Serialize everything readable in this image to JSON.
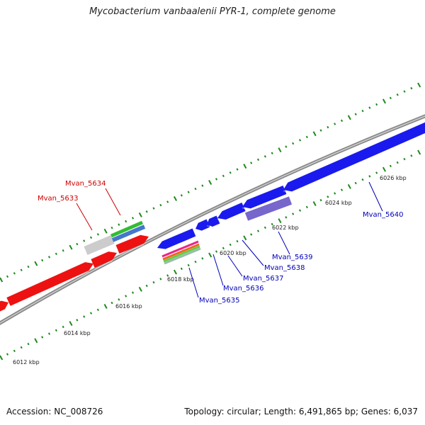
{
  "title": "Mycobacterium vanbaalenii PYR-1, complete genome",
  "footer": {
    "accession": "Accession: NC_008726",
    "summary": "Topology: circular; Length: 6,491,865 bp; Genes: 6,037"
  },
  "colors": {
    "backbone": "#8a8a8a",
    "tick": "#1f8a1f",
    "forward_gene": "#ee1111",
    "reverse_gene": "#1a1aee",
    "forward_label": "#cc0000",
    "reverse_label": "#0000bb"
  },
  "ticks": {
    "inner": [
      {
        "kbp": 6022,
        "label": "6022 kbp"
      },
      {
        "kbp": 6024,
        "label": "6024 kbp"
      },
      {
        "kbp": 6026,
        "label": "6026 kbp"
      }
    ],
    "outer": [
      {
        "kbp": 6012,
        "label": "6012 kbp"
      },
      {
        "kbp": 6014,
        "label": "6014 kbp"
      },
      {
        "kbp": 6016,
        "label": "6016 kbp"
      },
      {
        "kbp": 6018,
        "label": "6018 kbp"
      },
      {
        "kbp": 6020,
        "label": "6020 kbp"
      }
    ]
  },
  "genes": [
    {
      "name": "Mvan_5633",
      "strand": "forward",
      "color": "#ee1111"
    },
    {
      "name": "Mvan_5634",
      "strand": "forward",
      "color": "#ee1111"
    },
    {
      "name": "Mvan_5635",
      "strand": "reverse",
      "color": "#1a1aee"
    },
    {
      "name": "Mvan_5636",
      "strand": "reverse",
      "color": "#1a1aee"
    },
    {
      "name": "Mvan_5637",
      "strand": "reverse",
      "color": "#1a1aee"
    },
    {
      "name": "Mvan_5638",
      "strand": "reverse",
      "color": "#1a1aee"
    },
    {
      "name": "Mvan_5639",
      "strand": "reverse",
      "color": "#1a1aee"
    },
    {
      "name": "Mvan_5640",
      "strand": "reverse",
      "color": "#1a1aee"
    }
  ],
  "annotation_bars": [
    {
      "color": "#cccccc"
    },
    {
      "color": "#33bb33"
    },
    {
      "color": "#4477cc"
    },
    {
      "color": "#7766cc"
    },
    {
      "color": "#ee2288"
    },
    {
      "color": "#ee6622"
    },
    {
      "color": "#66cc44"
    },
    {
      "color": "#99bbaa"
    }
  ]
}
